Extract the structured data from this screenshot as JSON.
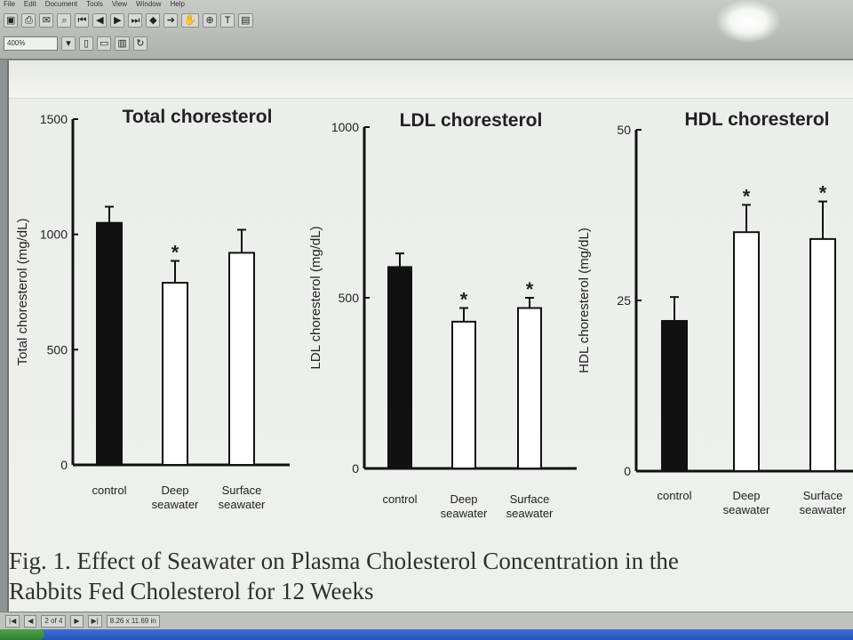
{
  "app": {
    "menu": [
      "File",
      "Edit",
      "Document",
      "Tools",
      "View",
      "Window",
      "Help"
    ],
    "toolbar_row1": [
      "save-icon",
      "print-icon",
      "email-icon",
      "search-icon",
      "first-page-icon",
      "prev-page-icon",
      "next-page-icon",
      "last-page-icon",
      "back-icon",
      "forward-icon",
      "hand-icon",
      "zoom-icon",
      "text-select-icon",
      "column-select-icon"
    ],
    "toolbar_row2": [
      "actual-size-icon",
      "fit-page-icon",
      "fit-width-icon",
      "rotate-icon"
    ],
    "zoom": "400%"
  },
  "status": {
    "page_indicator": "2 of 4",
    "page_size": "8.26 x 11.69 in"
  },
  "colors": {
    "bar_control": "#111111",
    "bar_seawater": "#ffffff",
    "axis": "#111111",
    "text": "#222222"
  },
  "chart_data": [
    {
      "type": "bar",
      "title": "Total choresterol",
      "ylabel": "Total choresterol (mg/dL)",
      "ylim": [
        0,
        1500
      ],
      "yticks": [
        "0",
        "500",
        "1000",
        "1500"
      ],
      "categories": [
        [
          "control"
        ],
        [
          "Deep",
          "seawater"
        ],
        [
          "Surface",
          "seawater"
        ]
      ],
      "values": [
        1050,
        790,
        920
      ],
      "errors": [
        70,
        95,
        100
      ],
      "significance": [
        "",
        "*",
        ""
      ],
      "grid": false
    },
    {
      "type": "bar",
      "title": "LDL choresterol",
      "ylabel": "LDL choresterol (mg/dL)",
      "ylim": [
        0,
        1000
      ],
      "yticks": [
        "0",
        "500",
        "1000"
      ],
      "categories": [
        [
          "control"
        ],
        [
          "Deep",
          "seawater"
        ],
        [
          "Surface",
          "seawater"
        ]
      ],
      "values": [
        590,
        430,
        470
      ],
      "errors": [
        40,
        40,
        30
      ],
      "significance": [
        "",
        "*",
        "*"
      ],
      "grid": false
    },
    {
      "type": "bar",
      "title": "HDL choresterol",
      "ylabel": "HDL choresterol (mg/dL)",
      "ylim": [
        0,
        50
      ],
      "yticks": [
        "0",
        "25",
        "50"
      ],
      "categories": [
        [
          "control"
        ],
        [
          "Deep",
          "seawater"
        ],
        [
          "Surface",
          "seawater"
        ]
      ],
      "values": [
        22,
        35,
        34
      ],
      "errors": [
        3.5,
        4,
        5.5
      ],
      "significance": [
        "",
        "*",
        "*"
      ],
      "grid": false
    }
  ],
  "caption": {
    "line1": "Fig. 1.  Effect of Seawater on Plasma Cholesterol Concentration in the",
    "line2": "Rabbits Fed Cholesterol for 12 Weeks"
  }
}
